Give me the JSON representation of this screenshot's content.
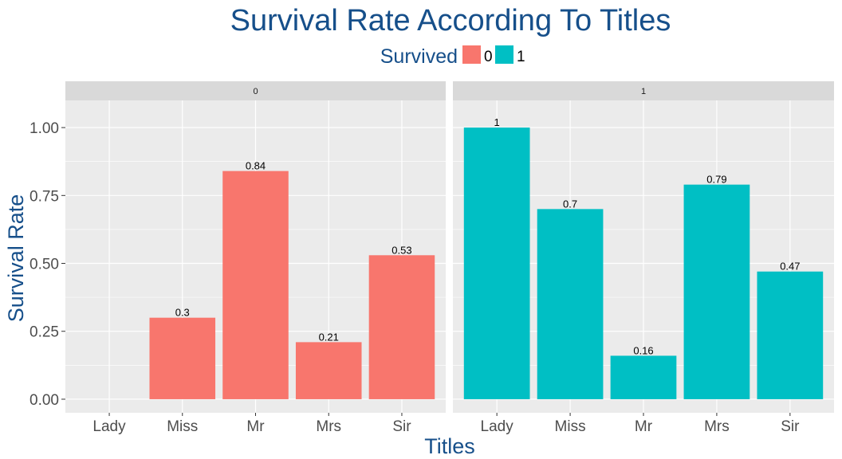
{
  "chart_data": {
    "type": "bar",
    "title": "Survival Rate According To Titles",
    "xlabel": "Titles",
    "ylabel": "Survival Rate",
    "legend": {
      "title": "Survived",
      "placement": "top",
      "entries": [
        "0",
        "1"
      ]
    },
    "categories": [
      "Lady",
      "Miss",
      "Mr",
      "Mrs",
      "Sir"
    ],
    "ylim": [
      -0.05,
      1.1
    ],
    "yticks": [
      "0.00",
      "0.25",
      "0.50",
      "0.75",
      "1.00"
    ],
    "grid": true,
    "facets": [
      {
        "label": "0",
        "series": "0",
        "values": [
          null,
          0.3,
          0.84,
          0.21,
          0.53
        ],
        "labels": [
          "",
          "0.3",
          "0.84",
          "0.21",
          "0.53"
        ]
      },
      {
        "label": "1",
        "series": "1",
        "values": [
          1,
          0.7,
          0.16,
          0.79,
          0.47
        ],
        "labels": [
          "1",
          "0.7",
          "0.16",
          "0.79",
          "0.47"
        ]
      }
    ]
  },
  "colors": {
    "title": "#164f8a",
    "series_0": "#f8766d",
    "series_1": "#00bfc4",
    "panel_bg": "#ebebeb",
    "strip_bg": "#d9d9d9",
    "grid": "#ffffff"
  }
}
